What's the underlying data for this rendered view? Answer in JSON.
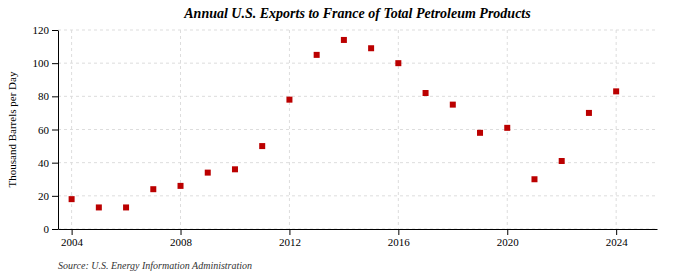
{
  "chart_data": {
    "type": "scatter",
    "title": "Annual U.S. Exports to France of Total Petroleum Products",
    "y_label": "Thousand Barrels per Day",
    "annotations": [
      "Source: U.S. Energy Information Administration"
    ],
    "x": [
      2004,
      2005,
      2006,
      2007,
      2008,
      2009,
      2010,
      2011,
      2012,
      2013,
      2014,
      2015,
      2016,
      2017,
      2018,
      2019,
      2020,
      2021,
      2022,
      2023,
      2024
    ],
    "values": [
      18,
      13,
      13,
      24,
      26,
      34,
      36,
      50,
      78,
      105,
      114,
      109,
      100,
      82,
      75,
      58,
      61,
      30,
      41,
      70,
      83
    ],
    "color": "#BB0000",
    "marker": "square",
    "xlim": [
      2003.5,
      2025.5
    ],
    "ylim": [
      0,
      120
    ],
    "xticks": [
      2004,
      2008,
      2012,
      2016,
      2020,
      2024
    ],
    "yticks": [
      0,
      20,
      40,
      60,
      80,
      100,
      120
    ],
    "grid": true
  }
}
